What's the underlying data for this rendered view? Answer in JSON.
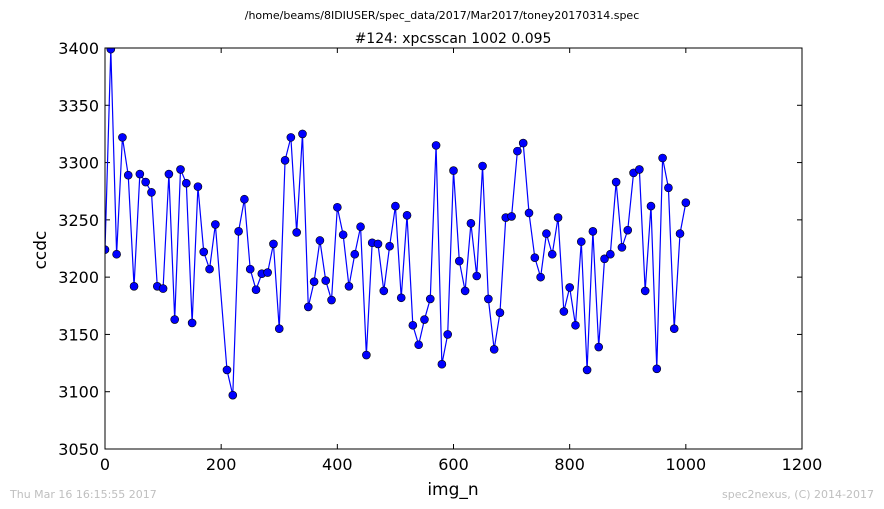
{
  "figure": {
    "path": "/home/beams/8IDIUSER/spec_data/2017/Mar2017/toney20170314.spec",
    "footer_left": "Thu Mar 16 16:15:55 2017",
    "footer_right": "spec2nexus, (C) 2014-2017"
  },
  "chart_data": {
    "type": "line",
    "title": "#124: xpcsscan 1002 0.095",
    "xlabel": "img_n",
    "ylabel": "ccdc",
    "xlim": [
      0,
      1200
    ],
    "ylim": [
      3050,
      3400
    ],
    "xticks": [
      "0",
      "200",
      "400",
      "600",
      "800",
      "1000",
      "1200"
    ],
    "yticks": [
      "3050",
      "3100",
      "3150",
      "3200",
      "3250",
      "3300",
      "3350",
      "3400"
    ],
    "grid": false,
    "marker": "circle",
    "color": "#0000ff",
    "series": [
      {
        "x": [
          0,
          10,
          20,
          30,
          40,
          50,
          60,
          70,
          80,
          90,
          100,
          110,
          120,
          130,
          140,
          150,
          160,
          170,
          180,
          190,
          210,
          220,
          230,
          240,
          250,
          260,
          270,
          280,
          290,
          300,
          310,
          320,
          330,
          340,
          350,
          360,
          370,
          380,
          390,
          400,
          410,
          420,
          430,
          440,
          450,
          460,
          470,
          480,
          490,
          500,
          510,
          520,
          530,
          540,
          550,
          560,
          570,
          580,
          590,
          600,
          610,
          620,
          630,
          640,
          650,
          660,
          670,
          680,
          690,
          700,
          710,
          720,
          730,
          740,
          750,
          760,
          770,
          780,
          790,
          800,
          810,
          820,
          830,
          840,
          850,
          860,
          870,
          880,
          890,
          900,
          910,
          920,
          930,
          940,
          950,
          960,
          970,
          980,
          990,
          1000
        ],
        "y": [
          3224,
          3399,
          3220,
          3322,
          3289,
          3192,
          3290,
          3283,
          3274,
          3192,
          3190,
          3290,
          3163,
          3294,
          3282,
          3160,
          3279,
          3222,
          3207,
          3246,
          3119,
          3097,
          3240,
          3268,
          3207,
          3189,
          3203,
          3204,
          3229,
          3155,
          3302,
          3322,
          3239,
          3325,
          3174,
          3196,
          3232,
          3197,
          3180,
          3261,
          3237,
          3192,
          3220,
          3244,
          3132,
          3230,
          3229,
          3188,
          3227,
          3262,
          3182,
          3254,
          3158,
          3141,
          3163,
          3181,
          3315,
          3124,
          3150,
          3293,
          3214,
          3188,
          3247,
          3201,
          3297,
          3181,
          3137,
          3169,
          3252,
          3253,
          3310,
          3317,
          3256,
          3217,
          3200,
          3238,
          3220,
          3252,
          3170,
          3191,
          3158,
          3231,
          3119,
          3240,
          3139,
          3216,
          3220,
          3283,
          3226,
          3241,
          3291,
          3294,
          3188,
          3262,
          3120,
          3304,
          3278,
          3155,
          3238,
          3265
        ]
      }
    ]
  }
}
